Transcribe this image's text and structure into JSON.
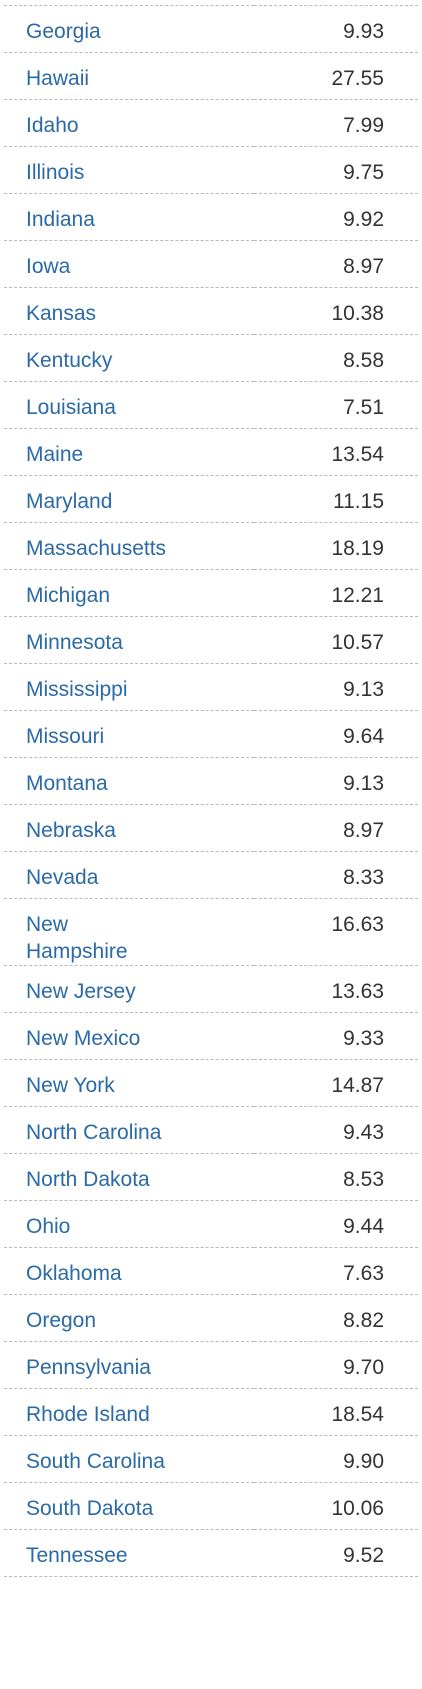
{
  "table": {
    "rows": [
      [
        "Georgia",
        "9.93"
      ],
      [
        "Hawaii",
        "27.55"
      ],
      [
        "Idaho",
        "7.99"
      ],
      [
        "Illinois",
        "9.75"
      ],
      [
        "Indiana",
        "9.92"
      ],
      [
        "Iowa",
        "8.97"
      ],
      [
        "Kansas",
        "10.38"
      ],
      [
        "Kentucky",
        "8.58"
      ],
      [
        "Louisiana",
        "7.51"
      ],
      [
        "Maine",
        "13.54"
      ],
      [
        "Maryland",
        "11.15"
      ],
      [
        "Massachusetts",
        "18.19"
      ],
      [
        "Michigan",
        "12.21"
      ],
      [
        "Minnesota",
        "10.57"
      ],
      [
        "Mississippi",
        "9.13"
      ],
      [
        "Missouri",
        "9.64"
      ],
      [
        "Montana",
        "9.13"
      ],
      [
        "Nebraska",
        "8.97"
      ],
      [
        "Nevada",
        "8.33"
      ],
      [
        "New Hampshire",
        "16.63"
      ],
      [
        "New Jersey",
        "13.63"
      ],
      [
        "New Mexico",
        "9.33"
      ],
      [
        "New York",
        "14.87"
      ],
      [
        "North Carolina",
        "9.43"
      ],
      [
        "North Dakota",
        "8.53"
      ],
      [
        "Ohio",
        "9.44"
      ],
      [
        "Oklahoma",
        "7.63"
      ],
      [
        "Oregon",
        "8.82"
      ],
      [
        "Pennsylvania",
        "9.70"
      ],
      [
        "Rhode Island",
        "18.54"
      ],
      [
        "South Carolina",
        "9.90"
      ],
      [
        "South Dakota",
        "10.06"
      ],
      [
        "Tennessee",
        "9.52"
      ]
    ]
  }
}
